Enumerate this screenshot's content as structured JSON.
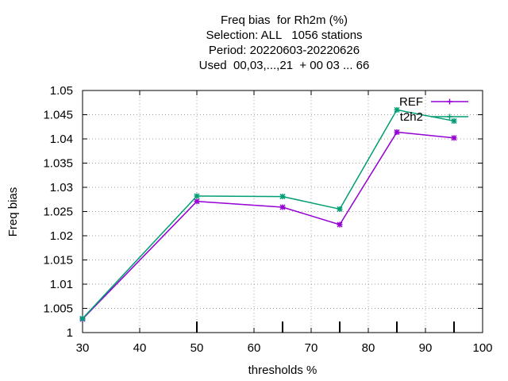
{
  "chart_data": {
    "type": "line",
    "title_lines": [
      "Freq bias  for Rh2m (%)",
      "Selection: ALL   1056 stations",
      "Period: 20220603-20220626",
      "Used  00,03,...,21  + 00 03 ... 66"
    ],
    "xlabel": "thresholds %",
    "ylabel": "Freq bias",
    "xlim": [
      30,
      100
    ],
    "ylim": [
      1,
      1.05
    ],
    "x_ticks": [
      "30",
      "40",
      "50",
      "60",
      "70",
      "80",
      "90",
      "100"
    ],
    "y_ticks": [
      "1",
      "1.005",
      "1.01",
      "1.015",
      "1.02",
      "1.025",
      "1.03",
      "1.035",
      "1.04",
      "1.045",
      "1.05"
    ],
    "grid": true,
    "legend_position": "top-right",
    "series": [
      {
        "name": "REF",
        "color": "#9400d3",
        "x": [
          30,
          50,
          65,
          75,
          85,
          95
        ],
        "y": [
          1.0028,
          1.0271,
          1.0259,
          1.0223,
          1.0414,
          1.0402
        ]
      },
      {
        "name": "t2h2",
        "color": "#009e73",
        "x": [
          30,
          50,
          65,
          75,
          85,
          95
        ],
        "y": [
          1.0029,
          1.0282,
          1.0281,
          1.0255,
          1.046,
          1.0437
        ]
      }
    ]
  }
}
